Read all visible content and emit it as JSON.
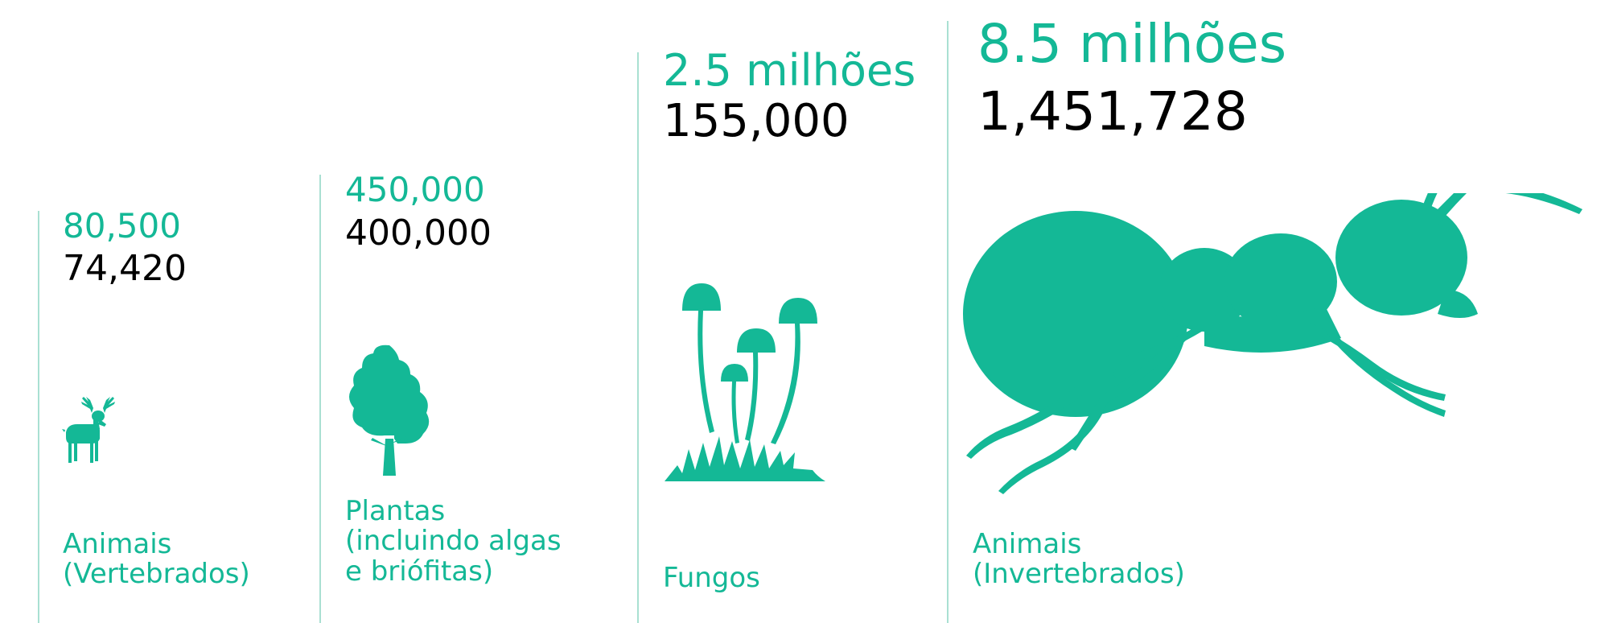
{
  "chart_data": {
    "type": "table",
    "title": "",
    "series": [
      {
        "name": "",
        "values": [
          "80,500",
          "450,000",
          "2.5 milhões",
          "8.5 milhões"
        ]
      },
      {
        "name": "",
        "values": [
          "74,420",
          "400,000",
          "155,000",
          "1,451,728"
        ]
      }
    ],
    "categories": [
      [
        "Animais",
        "(Vertebrados)"
      ],
      [
        "Plantas",
        "(incluindo algas",
        "e briófitas)"
      ],
      [
        "Fungos"
      ],
      [
        "Animais",
        "(Invertebrados)"
      ]
    ],
    "icons": [
      "deer-icon",
      "tree-icon",
      "mushroom-icon",
      "ant-icon"
    ]
  },
  "colors": {
    "accent": "#14b896",
    "divider": "#a9e0d2",
    "text_dark": "#000000"
  }
}
